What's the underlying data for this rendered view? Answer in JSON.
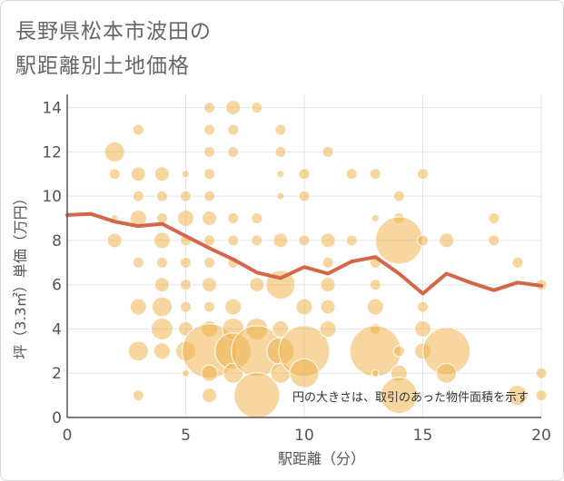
{
  "title_lines": [
    "長野県松本市波田の",
    "駅距離別土地価格"
  ],
  "note": "円の大きさは、取引のあった物件面積を示す",
  "colors": {
    "bubble": "#f0b550",
    "line": "#d4664a",
    "grid": "#e5e5e5",
    "axis": "#555555"
  },
  "chart_data": {
    "type": "scatter",
    "xlabel": "駅距離（分）",
    "ylabel": "坪（3.3㎡）単価（万円）",
    "xlim": [
      0,
      20
    ],
    "ylim": [
      0,
      14.6
    ],
    "xticks": [
      0,
      5,
      10,
      15,
      20
    ],
    "yticks": [
      0,
      2,
      4,
      6,
      8,
      10,
      12,
      14
    ],
    "grid": true,
    "points": [
      {
        "x": 2,
        "y": 12,
        "s": 11
      },
      {
        "x": 2,
        "y": 11,
        "s": 6
      },
      {
        "x": 2,
        "y": 8,
        "s": 8
      },
      {
        "x": 2,
        "y": 9,
        "s": 4
      },
      {
        "x": 3,
        "y": 13,
        "s": 6
      },
      {
        "x": 3,
        "y": 11,
        "s": 8
      },
      {
        "x": 3,
        "y": 10,
        "s": 6
      },
      {
        "x": 3,
        "y": 9,
        "s": 9
      },
      {
        "x": 3,
        "y": 7,
        "s": 6
      },
      {
        "x": 3,
        "y": 5,
        "s": 9
      },
      {
        "x": 3,
        "y": 3,
        "s": 11
      },
      {
        "x": 3,
        "y": 1,
        "s": 6
      },
      {
        "x": 4,
        "y": 11,
        "s": 8
      },
      {
        "x": 4,
        "y": 10,
        "s": 6
      },
      {
        "x": 4,
        "y": 9,
        "s": 6
      },
      {
        "x": 4,
        "y": 8,
        "s": 9
      },
      {
        "x": 4,
        "y": 7,
        "s": 6
      },
      {
        "x": 4,
        "y": 6,
        "s": 8
      },
      {
        "x": 4,
        "y": 5,
        "s": 11
      },
      {
        "x": 4,
        "y": 4,
        "s": 12
      },
      {
        "x": 4,
        "y": 3,
        "s": 9
      },
      {
        "x": 5,
        "y": 11,
        "s": 4
      },
      {
        "x": 5,
        "y": 10,
        "s": 6
      },
      {
        "x": 5,
        "y": 9,
        "s": 9
      },
      {
        "x": 5,
        "y": 8,
        "s": 6
      },
      {
        "x": 5,
        "y": 7,
        "s": 6
      },
      {
        "x": 5,
        "y": 6,
        "s": 6
      },
      {
        "x": 5,
        "y": 5,
        "s": 6
      },
      {
        "x": 5,
        "y": 4,
        "s": 8
      },
      {
        "x": 5,
        "y": 3,
        "s": 11
      },
      {
        "x": 5,
        "y": 2,
        "s": 4
      },
      {
        "x": 6,
        "y": 14,
        "s": 6
      },
      {
        "x": 6,
        "y": 13,
        "s": 6
      },
      {
        "x": 6,
        "y": 12,
        "s": 6
      },
      {
        "x": 6,
        "y": 11,
        "s": 6
      },
      {
        "x": 6,
        "y": 10,
        "s": 6
      },
      {
        "x": 6,
        "y": 9,
        "s": 8
      },
      {
        "x": 6,
        "y": 8,
        "s": 6
      },
      {
        "x": 6,
        "y": 7,
        "s": 6
      },
      {
        "x": 6,
        "y": 6,
        "s": 8
      },
      {
        "x": 6,
        "y": 5,
        "s": 6
      },
      {
        "x": 6,
        "y": 4,
        "s": 9
      },
      {
        "x": 6,
        "y": 3,
        "s": 30
      },
      {
        "x": 6,
        "y": 2,
        "s": 9
      },
      {
        "x": 6,
        "y": 1,
        "s": 8
      },
      {
        "x": 7,
        "y": 14,
        "s": 8
      },
      {
        "x": 7,
        "y": 13,
        "s": 6
      },
      {
        "x": 7,
        "y": 12,
        "s": 6
      },
      {
        "x": 7,
        "y": 9,
        "s": 6
      },
      {
        "x": 7,
        "y": 8,
        "s": 6
      },
      {
        "x": 7,
        "y": 7,
        "s": 6
      },
      {
        "x": 7,
        "y": 5,
        "s": 9
      },
      {
        "x": 7,
        "y": 4,
        "s": 12
      },
      {
        "x": 7,
        "y": 3,
        "s": 20
      },
      {
        "x": 7,
        "y": 2,
        "s": 11
      },
      {
        "x": 8,
        "y": 14,
        "s": 6
      },
      {
        "x": 8,
        "y": 9,
        "s": 6
      },
      {
        "x": 8,
        "y": 8,
        "s": 6
      },
      {
        "x": 8,
        "y": 6,
        "s": 8
      },
      {
        "x": 8,
        "y": 4,
        "s": 12
      },
      {
        "x": 8,
        "y": 3,
        "s": 28
      },
      {
        "x": 8,
        "y": 1,
        "s": 25
      },
      {
        "x": 9,
        "y": 13,
        "s": 6
      },
      {
        "x": 9,
        "y": 12,
        "s": 6
      },
      {
        "x": 9,
        "y": 11,
        "s": 4
      },
      {
        "x": 9,
        "y": 10,
        "s": 4
      },
      {
        "x": 9,
        "y": 8,
        "s": 8
      },
      {
        "x": 9,
        "y": 6,
        "s": 16
      },
      {
        "x": 9,
        "y": 4,
        "s": 9
      },
      {
        "x": 9,
        "y": 3,
        "s": 15
      },
      {
        "x": 9,
        "y": 2,
        "s": 11
      },
      {
        "x": 10,
        "y": 11,
        "s": 6
      },
      {
        "x": 10,
        "y": 10,
        "s": 6
      },
      {
        "x": 10,
        "y": 8,
        "s": 6
      },
      {
        "x": 10,
        "y": 5,
        "s": 9
      },
      {
        "x": 10,
        "y": 3,
        "s": 28
      },
      {
        "x": 10,
        "y": 2,
        "s": 16
      },
      {
        "x": 11,
        "y": 12,
        "s": 6
      },
      {
        "x": 11,
        "y": 8,
        "s": 8
      },
      {
        "x": 11,
        "y": 7,
        "s": 6
      },
      {
        "x": 11,
        "y": 6,
        "s": 8
      },
      {
        "x": 11,
        "y": 5,
        "s": 8
      },
      {
        "x": 11,
        "y": 4,
        "s": 9
      },
      {
        "x": 12,
        "y": 11,
        "s": 6
      },
      {
        "x": 12,
        "y": 8,
        "s": 6
      },
      {
        "x": 13,
        "y": 11,
        "s": 6
      },
      {
        "x": 13,
        "y": 9,
        "s": 4
      },
      {
        "x": 13,
        "y": 7,
        "s": 6
      },
      {
        "x": 13,
        "y": 6,
        "s": 6
      },
      {
        "x": 13,
        "y": 5,
        "s": 9
      },
      {
        "x": 13,
        "y": 4,
        "s": 6
      },
      {
        "x": 13,
        "y": 3,
        "s": 28
      },
      {
        "x": 13,
        "y": 2,
        "s": 4
      },
      {
        "x": 14,
        "y": 10,
        "s": 6
      },
      {
        "x": 14,
        "y": 9,
        "s": 6
      },
      {
        "x": 14,
        "y": 8,
        "s": 26
      },
      {
        "x": 14,
        "y": 3,
        "s": 6
      },
      {
        "x": 14,
        "y": 2,
        "s": 9
      },
      {
        "x": 14,
        "y": 1,
        "s": 20
      },
      {
        "x": 15,
        "y": 11,
        "s": 6
      },
      {
        "x": 15,
        "y": 8,
        "s": 6
      },
      {
        "x": 15,
        "y": 5,
        "s": 6
      },
      {
        "x": 15,
        "y": 4,
        "s": 9
      },
      {
        "x": 15,
        "y": 3,
        "s": 9
      },
      {
        "x": 16,
        "y": 8,
        "s": 8
      },
      {
        "x": 16,
        "y": 3,
        "s": 26
      },
      {
        "x": 16,
        "y": 2,
        "s": 11
      },
      {
        "x": 18,
        "y": 9,
        "s": 6
      },
      {
        "x": 18,
        "y": 8,
        "s": 6
      },
      {
        "x": 19,
        "y": 7,
        "s": 6
      },
      {
        "x": 19,
        "y": 1,
        "s": 11
      },
      {
        "x": 20,
        "y": 6,
        "s": 6
      },
      {
        "x": 20,
        "y": 2,
        "s": 6
      },
      {
        "x": 20,
        "y": 1,
        "s": 6
      }
    ],
    "series": [
      {
        "type": "line",
        "x": [
          0,
          1,
          2,
          3,
          4,
          5,
          6,
          7,
          8,
          9,
          10,
          11,
          12,
          13,
          14,
          15,
          16,
          17,
          18,
          19,
          20
        ],
        "values": [
          9.15,
          9.2,
          8.85,
          8.65,
          8.75,
          8.2,
          7.65,
          7.15,
          6.55,
          6.3,
          6.8,
          6.5,
          7.05,
          7.25,
          6.5,
          5.6,
          6.5,
          6.1,
          5.75,
          6.1,
          5.95
        ]
      }
    ]
  }
}
